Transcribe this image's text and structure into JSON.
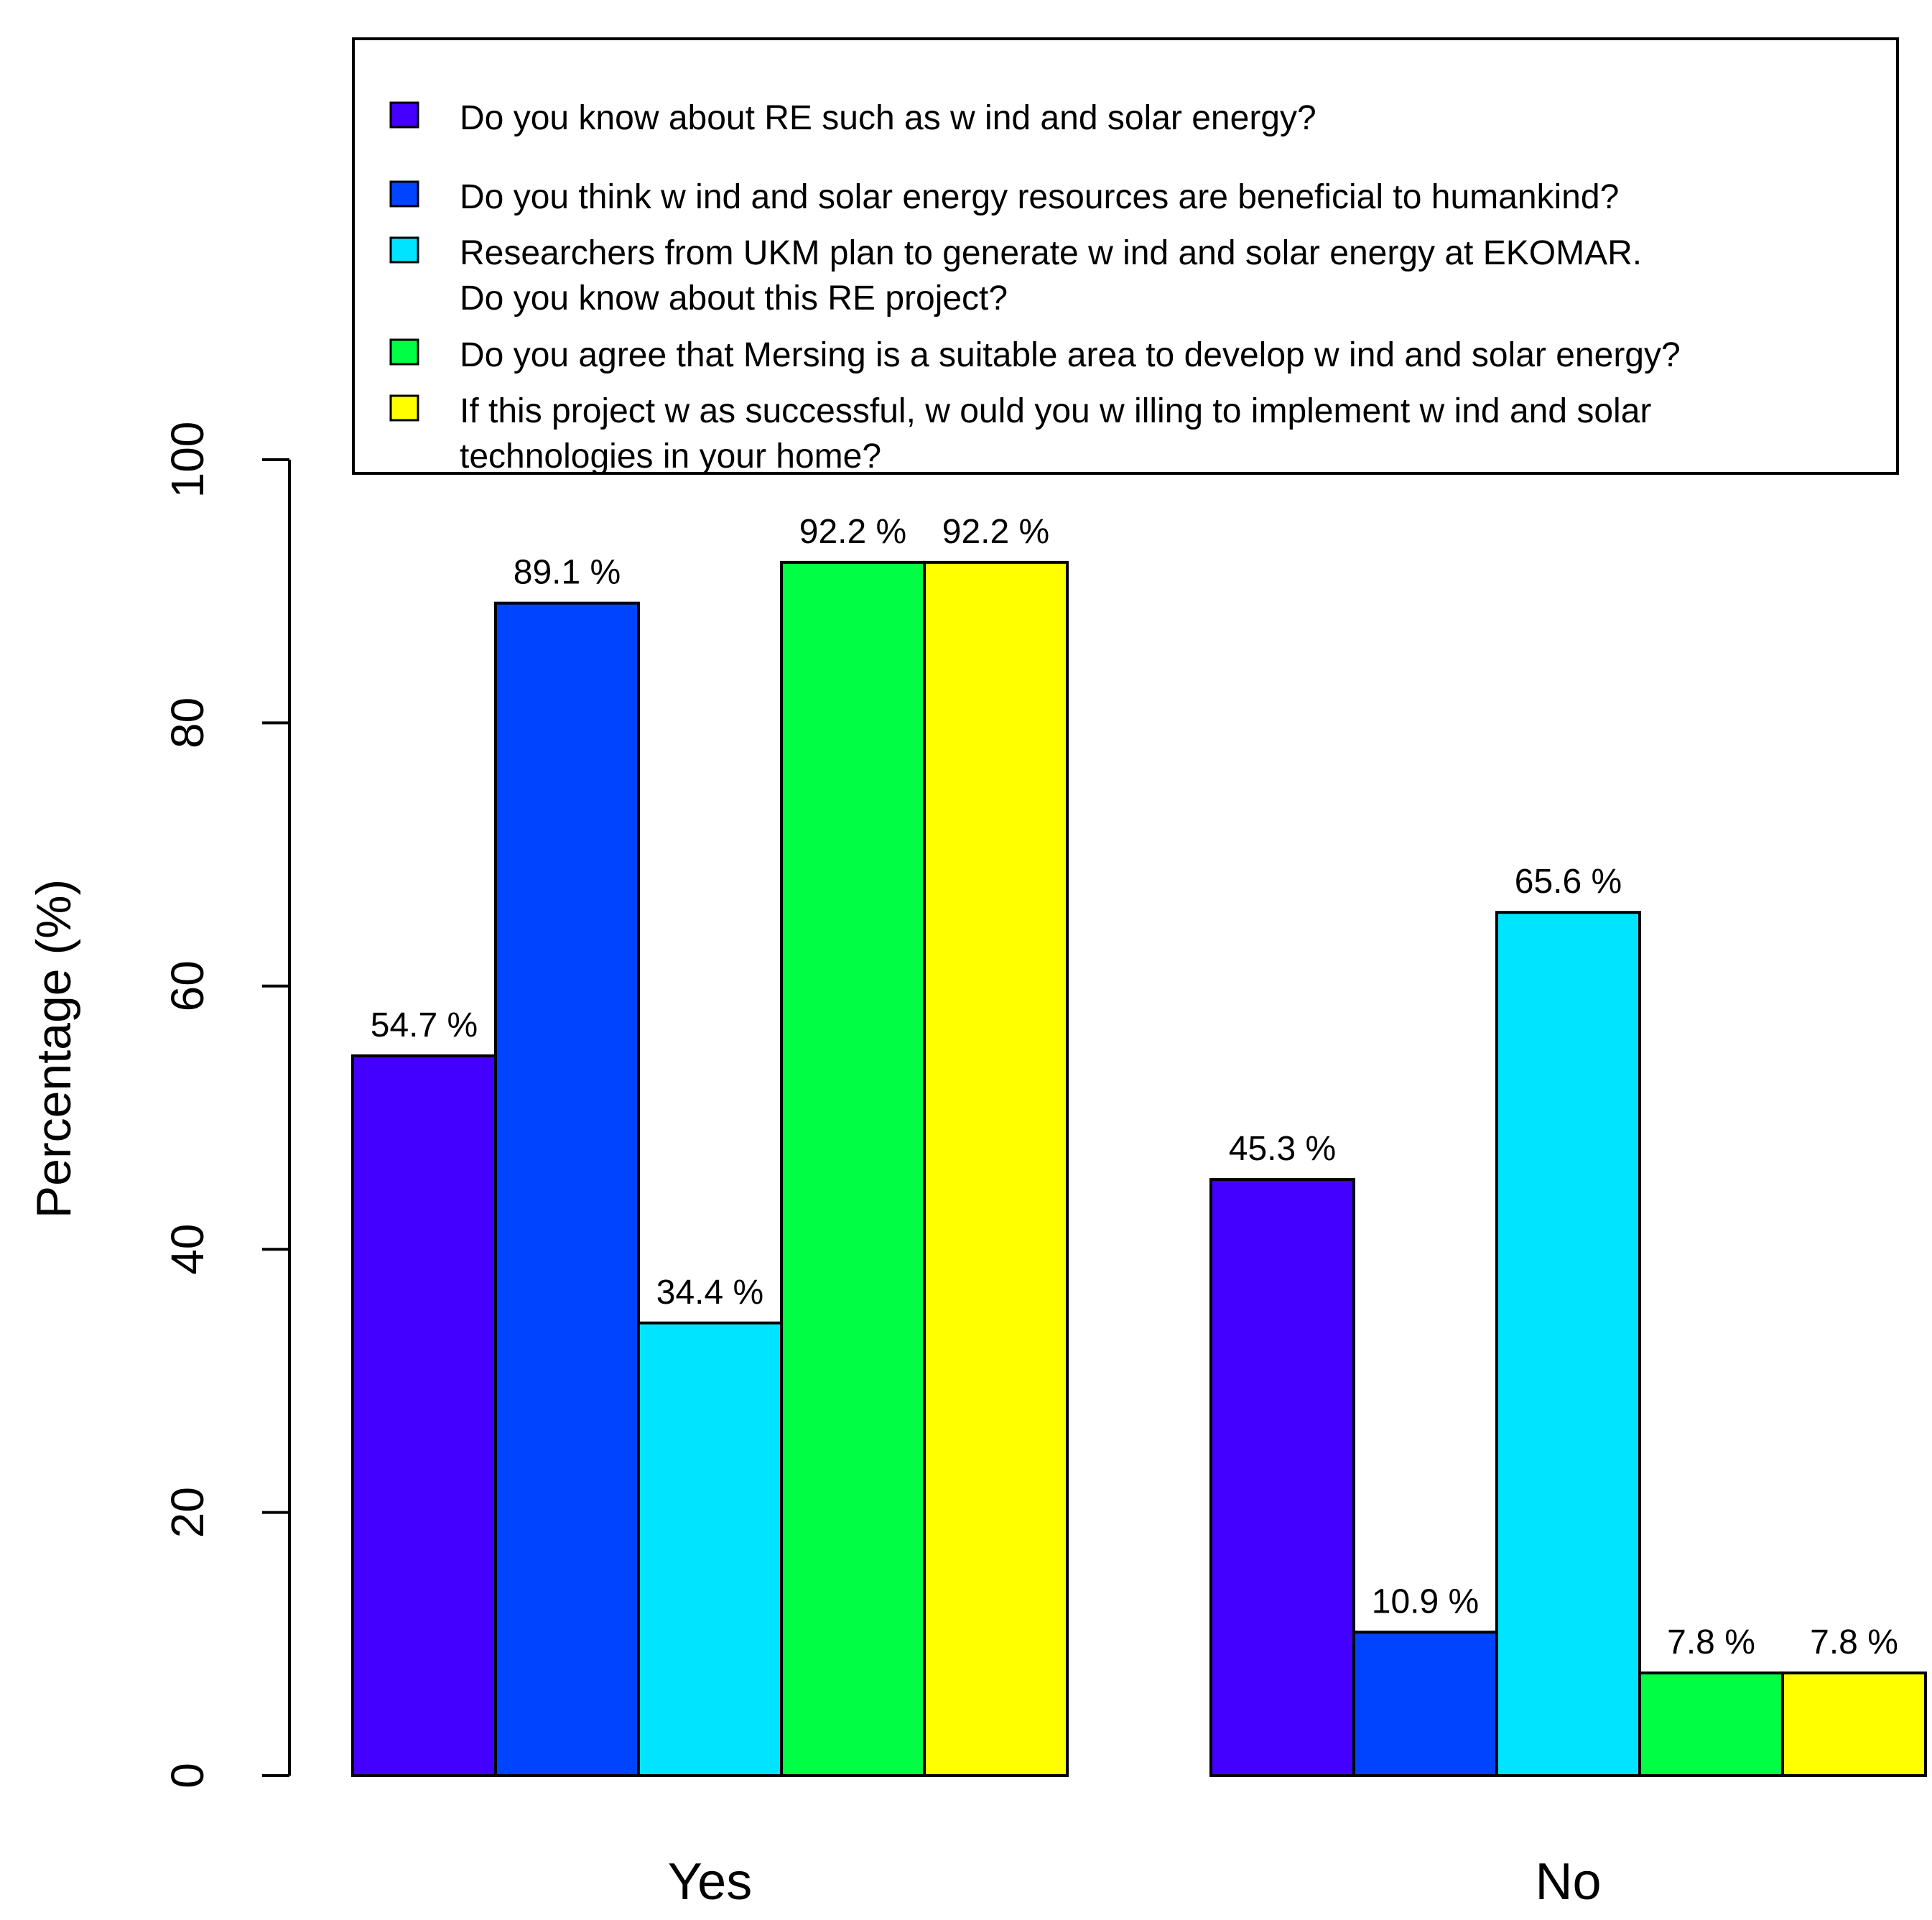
{
  "chart_data": {
    "type": "bar",
    "layout": "grouped",
    "title": "",
    "xlabel": "",
    "ylabel": "Percentage (%)",
    "ylim": [
      0,
      100
    ],
    "yticks": [
      0,
      20,
      40,
      60,
      80,
      100
    ],
    "grid": false,
    "legend_position": "top",
    "categories": [
      "Yes",
      "No"
    ],
    "series": [
      {
        "name": "Do you know  about RE such as w ind and solar energy?",
        "color": "#4400ff",
        "values": [
          54.7,
          45.3
        ],
        "labels": [
          "54.7 %",
          "45.3 %"
        ]
      },
      {
        "name": "Do you think w ind and solar energy resources are beneficial to humankind?",
        "color": "#0044ff",
        "values": [
          89.1,
          10.9
        ],
        "labels": [
          "89.1 %",
          "10.9 %"
        ]
      },
      {
        "name": "Researchers from UKM plan to generate w ind and solar energy at EKOMAR.\nDo you know  about this RE project?",
        "color": "#00e4ff",
        "values": [
          34.4,
          65.6
        ],
        "labels": [
          "34.4 %",
          "65.6 %"
        ]
      },
      {
        "name": "Do you agree that Mersing is a suitable area to develop w ind and solar energy?",
        "color": "#00ff44",
        "values": [
          92.2,
          7.8
        ],
        "labels": [
          "92.2 %",
          "7.8 %"
        ]
      },
      {
        "name": "If this project w as successful, w ould you w illing to implement w ind and solar\ntechnologies in your home?",
        "color": "#ffff00",
        "values": [
          92.2,
          7.8
        ],
        "labels": [
          "92.2 %",
          "7.8 %"
        ]
      }
    ]
  }
}
